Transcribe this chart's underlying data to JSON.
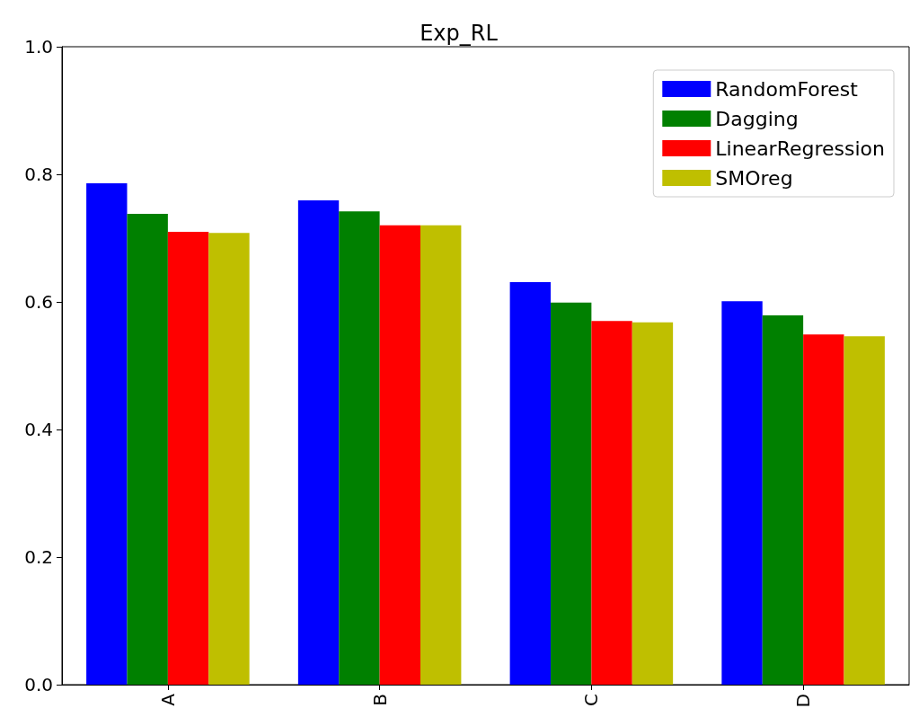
{
  "chart_data": {
    "type": "bar",
    "title": "Exp_RL",
    "categories": [
      "A",
      "B",
      "C",
      "D"
    ],
    "series": [
      {
        "name": "RandomForest",
        "color": "#0000ff",
        "values": [
          0.786,
          0.759,
          0.631,
          0.601
        ]
      },
      {
        "name": "Dagging",
        "color": "#008000",
        "values": [
          0.738,
          0.742,
          0.599,
          0.579
        ]
      },
      {
        "name": "LinearRegression",
        "color": "#ff0000",
        "values": [
          0.71,
          0.72,
          0.57,
          0.549
        ]
      },
      {
        "name": "SMOreg",
        "color": "#bfbf00",
        "values": [
          0.708,
          0.72,
          0.568,
          0.546
        ]
      }
    ],
    "ylim": [
      0,
      1
    ],
    "yticks": [
      {
        "value": 0,
        "label": "0.0"
      },
      {
        "value": 0.2,
        "label": "0.2"
      },
      {
        "value": 0.4,
        "label": "0.4"
      },
      {
        "value": 0.6,
        "label": "0.6"
      },
      {
        "value": 0.8,
        "label": "0.8"
      },
      {
        "value": 1,
        "label": "1.0"
      }
    ],
    "grid": false,
    "legend": "top right"
  }
}
